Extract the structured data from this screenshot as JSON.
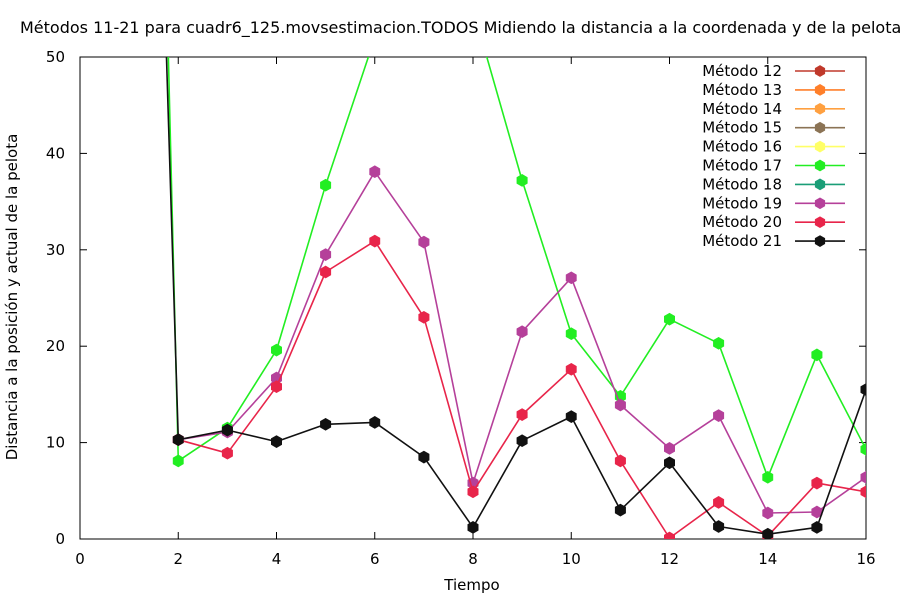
{
  "chart_data": {
    "type": "line",
    "title": "Métodos 11-21 para cuadr6_125.movsestimacion.TODOS Midiendo la distancia a la coordenada y de la pelota",
    "xlabel": "Tiempo",
    "ylabel": "Distancia a la posición y actual de la pelota",
    "xlim": [
      0,
      16
    ],
    "ylim": [
      0,
      50
    ],
    "xticks": [
      "0",
      "2",
      "4",
      "6",
      "8",
      "10",
      "12",
      "14",
      "16"
    ],
    "yticks": [
      "0",
      "10",
      "20",
      "30",
      "40",
      "50"
    ],
    "legend_position": "top-right",
    "series": [
      {
        "name": "Método 12",
        "color": "#c0392b",
        "x": [],
        "y": []
      },
      {
        "name": "Método 13",
        "color": "#ff7f2a",
        "x": [],
        "y": []
      },
      {
        "name": "Método 14",
        "color": "#ffa040",
        "x": [],
        "y": []
      },
      {
        "name": "Método 15",
        "color": "#8b7355",
        "x": [],
        "y": []
      },
      {
        "name": "Método 16",
        "color": "#ffff66",
        "x": [],
        "y": []
      },
      {
        "name": "Método 17",
        "color": "#22ee22",
        "x": [
          1.75,
          2,
          3,
          4,
          5,
          6,
          7,
          8,
          9,
          10,
          11,
          12,
          13,
          14,
          15,
          16
        ],
        "y": [
          60,
          8.1,
          11.5,
          19.6,
          36.7,
          52,
          70,
          55,
          37.2,
          21.3,
          14.8,
          22.8,
          20.3,
          6.4,
          19.1,
          9.3
        ]
      },
      {
        "name": "Método 18",
        "color": "#1a9e77",
        "x": [],
        "y": []
      },
      {
        "name": "Método 19",
        "color": "#b5409a",
        "x": [
          2,
          3,
          4,
          5,
          6,
          7,
          8,
          9,
          10,
          11,
          12,
          13,
          14,
          15,
          16
        ],
        "y": [
          10.3,
          11.1,
          16.7,
          29.5,
          38.1,
          30.8,
          5.8,
          21.5,
          27.1,
          13.9,
          9.4,
          12.8,
          2.7,
          2.8,
          6.4
        ]
      },
      {
        "name": "Método 20",
        "color": "#e8254a",
        "x": [
          2,
          3,
          4,
          5,
          6,
          7,
          8,
          9,
          10,
          11,
          12,
          13,
          14,
          15,
          16
        ],
        "y": [
          10.3,
          8.9,
          15.8,
          27.7,
          30.9,
          23.0,
          4.9,
          12.9,
          17.6,
          8.1,
          0.1,
          3.8,
          0.3,
          5.8,
          4.9
        ]
      },
      {
        "name": "Método 21",
        "color": "#111111",
        "x": [
          1.7,
          2,
          3,
          4,
          5,
          6,
          7,
          8,
          9,
          10,
          11,
          12,
          13,
          14,
          15,
          16
        ],
        "y": [
          60,
          10.3,
          11.3,
          10.1,
          11.9,
          12.1,
          8.5,
          1.2,
          10.2,
          12.7,
          3.0,
          7.9,
          1.3,
          0.5,
          1.2,
          15.5
        ]
      }
    ]
  }
}
